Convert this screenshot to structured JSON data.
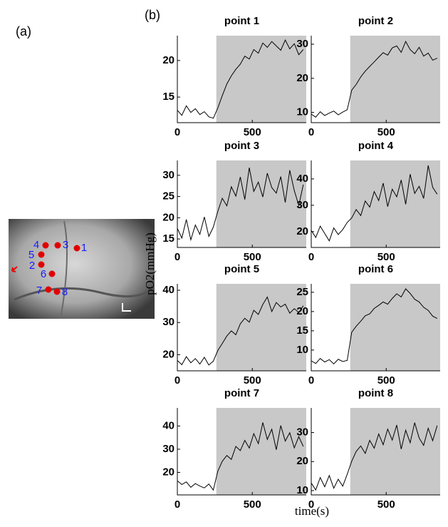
{
  "panel_labels": [
    "(a)",
    "(b)"
  ],
  "image": {
    "points": [
      "1",
      "2",
      "3",
      "4",
      "5",
      "6",
      "7",
      "8"
    ]
  },
  "y_axis_label": "pO2(mmHg)",
  "x_axis_label": "time(s)",
  "chart_data": [
    {
      "type": "line",
      "title": "point 1",
      "color": "#000000",
      "shade_color": "#c8c8c8",
      "shade_xlim": [
        260,
        860
      ],
      "x": [
        0,
        30,
        60,
        90,
        120,
        150,
        180,
        210,
        240,
        270,
        300,
        330,
        360,
        390,
        420,
        450,
        480,
        510,
        540,
        570,
        600,
        630,
        660,
        690,
        720,
        750,
        780,
        810,
        840
      ],
      "values": [
        13.2,
        12.5,
        13.8,
        12.9,
        13.4,
        12.6,
        13.0,
        12.3,
        12.1,
        13.5,
        15.2,
        16.8,
        17.9,
        18.8,
        19.5,
        20.6,
        20.2,
        21.5,
        21.0,
        22.4,
        21.8,
        22.6,
        22.0,
        21.4,
        22.8,
        21.6,
        22.3,
        20.8,
        21.5
      ],
      "xlim": [
        0,
        860
      ],
      "xticks": [
        0,
        500
      ],
      "ylim": [
        11.5,
        23.4
      ],
      "yticks": [
        15,
        20
      ]
    },
    {
      "type": "line",
      "title": "point 2",
      "color": "#000000",
      "shade_color": "#c8c8c8",
      "shade_xlim": [
        260,
        860
      ],
      "x": [
        0,
        30,
        60,
        90,
        120,
        150,
        180,
        210,
        240,
        270,
        300,
        330,
        360,
        390,
        420,
        450,
        480,
        510,
        540,
        570,
        600,
        630,
        660,
        690,
        720,
        750,
        780,
        810,
        840
      ],
      "values": [
        9.5,
        8.6,
        10.2,
        9.1,
        9.8,
        10.4,
        9.3,
        10.1,
        10.8,
        16.5,
        18.2,
        20.4,
        22.1,
        23.5,
        24.8,
        26.2,
        27.5,
        26.8,
        28.9,
        29.5,
        27.6,
        30.8,
        28.4,
        27.2,
        29.1,
        26.5,
        27.4,
        25.3,
        25.9
      ],
      "xlim": [
        0,
        860
      ],
      "xticks": [
        0,
        500
      ],
      "ylim": [
        7,
        32.5
      ],
      "yticks": [
        10,
        20,
        30
      ]
    },
    {
      "type": "line",
      "title": "point 3",
      "color": "#000000",
      "shade_color": "#c8c8c8",
      "shade_xlim": [
        260,
        860
      ],
      "x": [
        0,
        30,
        60,
        90,
        120,
        150,
        180,
        210,
        240,
        270,
        300,
        330,
        360,
        390,
        420,
        450,
        480,
        510,
        540,
        570,
        600,
        630,
        660,
        690,
        720,
        750,
        780,
        810,
        840
      ],
      "values": [
        17.5,
        15.2,
        19.6,
        14.8,
        18.3,
        16.1,
        20.2,
        15.6,
        17.8,
        21.5,
        24.6,
        22.8,
        27.3,
        25.1,
        29.6,
        24.3,
        31.8,
        26.2,
        28.4,
        24.9,
        30.5,
        27.1,
        25.8,
        29.7,
        23.6,
        31.2,
        26.4,
        22.9,
        27.8
      ],
      "xlim": [
        0,
        860
      ],
      "xticks": [
        0,
        500
      ],
      "ylim": [
        13,
        33.5
      ],
      "yticks": [
        15,
        20,
        25,
        30
      ]
    },
    {
      "type": "line",
      "title": "point 4",
      "color": "#000000",
      "shade_color": "#c8c8c8",
      "shade_xlim": [
        260,
        860
      ],
      "x": [
        0,
        30,
        60,
        90,
        120,
        150,
        180,
        210,
        240,
        270,
        300,
        330,
        360,
        390,
        420,
        450,
        480,
        510,
        540,
        570,
        600,
        630,
        660,
        690,
        720,
        750,
        780,
        810,
        840
      ],
      "values": [
        20.5,
        17.8,
        22.1,
        19.3,
        16.5,
        21.4,
        18.9,
        20.8,
        23.5,
        25.2,
        28.4,
        26.1,
        31.6,
        29.3,
        35.2,
        31.8,
        38.4,
        29.5,
        36.1,
        33.2,
        39.6,
        30.4,
        41.8,
        34.5,
        37.2,
        32.6,
        45.1,
        36.8,
        34.2
      ],
      "xlim": [
        0,
        860
      ],
      "xticks": [
        0,
        500
      ],
      "ylim": [
        14,
        47
      ],
      "yticks": [
        20,
        30,
        40
      ]
    },
    {
      "type": "line",
      "title": "point 5",
      "color": "#000000",
      "shade_color": "#c8c8c8",
      "shade_xlim": [
        260,
        860
      ],
      "x": [
        0,
        30,
        60,
        90,
        120,
        150,
        180,
        210,
        240,
        270,
        300,
        330,
        360,
        390,
        420,
        450,
        480,
        510,
        540,
        570,
        600,
        630,
        660,
        690,
        720,
        750,
        780,
        810,
        840
      ],
      "values": [
        18.2,
        16.9,
        19.4,
        17.5,
        18.8,
        17.1,
        19.2,
        16.8,
        18.0,
        21.3,
        23.5,
        25.8,
        27.4,
        26.2,
        29.6,
        31.3,
        30.1,
        33.8,
        32.5,
        35.6,
        37.9,
        33.4,
        36.2,
        34.8,
        35.7,
        32.9,
        34.3,
        33.1,
        35.2
      ],
      "xlim": [
        0,
        860
      ],
      "xticks": [
        0,
        500
      ],
      "ylim": [
        15,
        42
      ],
      "yticks": [
        20,
        30,
        40
      ]
    },
    {
      "type": "line",
      "title": "point 6",
      "color": "#000000",
      "shade_color": "#c8c8c8",
      "shade_xlim": [
        260,
        860
      ],
      "x": [
        0,
        30,
        60,
        90,
        120,
        150,
        180,
        210,
        240,
        270,
        300,
        330,
        360,
        390,
        420,
        450,
        480,
        510,
        540,
        570,
        600,
        630,
        660,
        690,
        720,
        750,
        780,
        810,
        840
      ],
      "values": [
        7.2,
        6.5,
        7.8,
        6.9,
        7.5,
        6.4,
        7.6,
        7.0,
        7.3,
        14.6,
        16.2,
        17.5,
        18.9,
        19.4,
        20.8,
        21.6,
        22.5,
        21.9,
        23.4,
        24.6,
        23.8,
        25.9,
        24.7,
        23.2,
        22.5,
        21.1,
        20.3,
        18.8,
        18.2
      ],
      "xlim": [
        0,
        860
      ],
      "xticks": [
        0,
        500
      ],
      "ylim": [
        4.6,
        27.2
      ],
      "yticks": [
        10,
        15,
        20,
        25
      ]
    },
    {
      "type": "line",
      "title": "point 7",
      "color": "#000000",
      "shade_color": "#c8c8c8",
      "shade_xlim": [
        260,
        860
      ],
      "x": [
        0,
        30,
        60,
        90,
        120,
        150,
        180,
        210,
        240,
        270,
        300,
        330,
        360,
        390,
        420,
        450,
        480,
        510,
        540,
        570,
        600,
        630,
        660,
        690,
        720,
        750,
        780,
        810,
        840
      ],
      "values": [
        16.4,
        14.8,
        15.9,
        13.6,
        15.2,
        14.1,
        13.3,
        15.0,
        12.4,
        20.5,
        24.8,
        27.3,
        25.6,
        31.2,
        29.4,
        33.8,
        30.5,
        36.7,
        32.4,
        41.5,
        34.2,
        38.6,
        29.8,
        40.2,
        33.5,
        37.1,
        30.6,
        35.4,
        31.2
      ],
      "xlim": [
        0,
        860
      ],
      "xticks": [
        0,
        500
      ],
      "ylim": [
        10.3,
        47.8
      ],
      "yticks": [
        20,
        30,
        40
      ]
    },
    {
      "type": "line",
      "title": "point 8",
      "color": "#000000",
      "shade_color": "#c8c8c8",
      "shade_xlim": [
        260,
        860
      ],
      "x": [
        0,
        30,
        60,
        90,
        120,
        150,
        180,
        210,
        240,
        270,
        300,
        330,
        360,
        390,
        420,
        450,
        480,
        510,
        540,
        570,
        600,
        630,
        660,
        690,
        720,
        750,
        780,
        810,
        840
      ],
      "values": [
        12.6,
        10.2,
        14.5,
        11.3,
        15.2,
        10.8,
        13.9,
        11.5,
        15.6,
        20.1,
        23.5,
        25.4,
        22.8,
        27.3,
        24.6,
        29.5,
        25.8,
        31.2,
        27.4,
        32.6,
        24.3,
        30.8,
        26.5,
        33.4,
        28.1,
        25.6,
        31.5,
        27.2,
        32.4
      ],
      "xlim": [
        0,
        860
      ],
      "xticks": [
        0,
        500
      ],
      "ylim": [
        8.5,
        38.5
      ],
      "yticks": [
        10,
        20,
        30
      ]
    }
  ]
}
